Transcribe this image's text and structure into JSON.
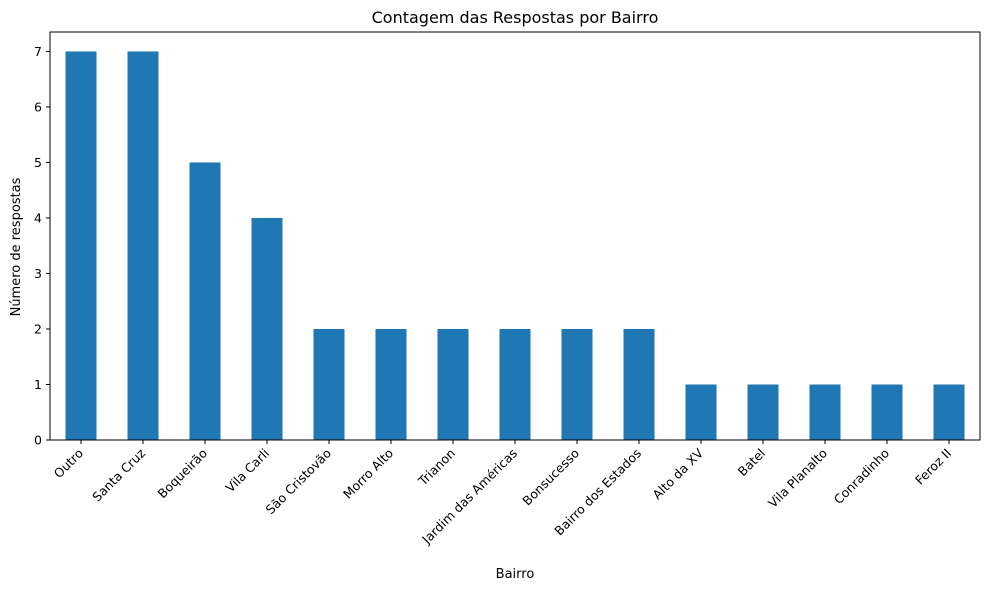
{
  "chart_data": {
    "type": "bar",
    "title": "Contagem das Respostas por Bairro",
    "xlabel": "Bairro",
    "ylabel": "Número de respostas",
    "categories": [
      "Outro",
      "Santa Cruz",
      "Boqueirão",
      "Vila Carli",
      "São Cristovão",
      "Morro Alto",
      "Trianon",
      "Jardim das Américas",
      "Bonsucesso",
      "Bairro dos Estados",
      "Alto da XV",
      "Batel",
      "Vila Planalto",
      "Conradinho",
      "Feroz II"
    ],
    "values": [
      7,
      7,
      5,
      4,
      2,
      2,
      2,
      2,
      2,
      2,
      1,
      1,
      1,
      1,
      1
    ],
    "ylim": [
      0,
      7.35
    ],
    "yticks": [
      0,
      1,
      2,
      3,
      4,
      5,
      6,
      7
    ],
    "grid": false,
    "legend": "none",
    "bar_color": "#1f77b4"
  }
}
